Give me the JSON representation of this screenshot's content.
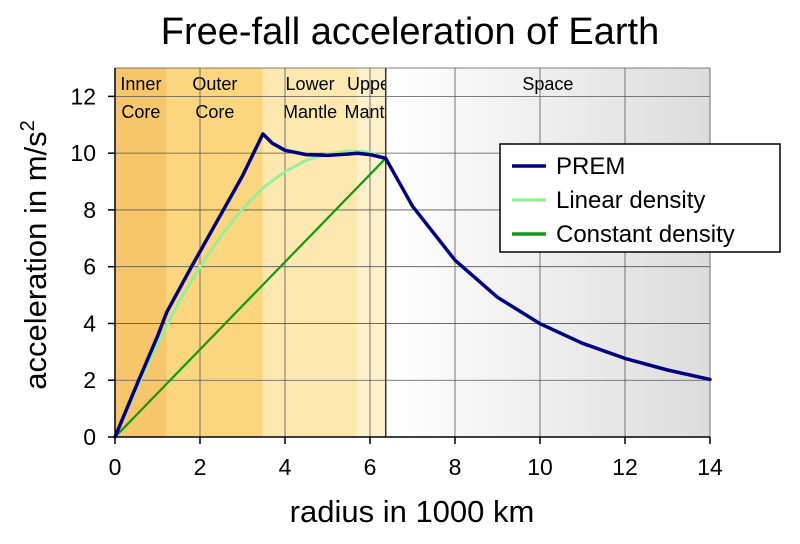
{
  "chart_data": {
    "type": "line",
    "title": "Free-fall acceleration of Earth",
    "xlabel": "radius in 1000 km",
    "ylabel": "acceleration in m/s",
    "ylabel_superscript": "2",
    "xlim": [
      0,
      14
    ],
    "ylim": [
      0,
      13
    ],
    "x_ticks": [
      "0",
      "2",
      "4",
      "6",
      "8",
      "10",
      "12",
      "14"
    ],
    "y_ticks": [
      "0",
      "2",
      "4",
      "6",
      "8",
      "10",
      "12"
    ],
    "grid": true,
    "legend_position": "top-right",
    "regions": [
      {
        "line1": "Inner",
        "line2": "Core",
        "x_start": 0,
        "x_end": 1.22,
        "color": "#f8c66a"
      },
      {
        "line1": "Outer",
        "line2": "Core",
        "x_start": 1.22,
        "x_end": 3.48,
        "color": "#fbd67e"
      },
      {
        "line1": "Lower",
        "line2": "Mantle",
        "x_start": 3.48,
        "x_end": 5.7,
        "color": "#fde8b0"
      },
      {
        "line1": "Upper",
        "line2": "Mantle",
        "x_start": 5.7,
        "x_end": 6.37,
        "color": "#fdf1cc"
      },
      {
        "line1": "",
        "line2": "Space",
        "x_start": 6.37,
        "x_end": 14,
        "color": "space-gradient"
      }
    ],
    "series": [
      {
        "name": "PREM",
        "color": "#000080",
        "points": [
          [
            0,
            0
          ],
          [
            0.5,
            1.8
          ],
          [
            1.0,
            3.55
          ],
          [
            1.22,
            4.4
          ],
          [
            1.8,
            6.0
          ],
          [
            2.4,
            7.6
          ],
          [
            3.0,
            9.2
          ],
          [
            3.48,
            10.68
          ],
          [
            3.7,
            10.35
          ],
          [
            4.0,
            10.1
          ],
          [
            4.5,
            9.95
          ],
          [
            5.0,
            9.92
          ],
          [
            5.5,
            9.97
          ],
          [
            5.7,
            10.0
          ],
          [
            6.0,
            9.95
          ],
          [
            6.37,
            9.82
          ],
          [
            7.0,
            8.13
          ],
          [
            8.0,
            6.23
          ],
          [
            9.0,
            4.92
          ],
          [
            10.0,
            3.99
          ],
          [
            11.0,
            3.3
          ],
          [
            12.0,
            2.77
          ],
          [
            13.0,
            2.36
          ],
          [
            14.0,
            2.03
          ]
        ]
      },
      {
        "name": "Linear density",
        "color": "#99ee99",
        "points": [
          [
            0,
            0
          ],
          [
            0.5,
            1.7
          ],
          [
            1.0,
            3.3
          ],
          [
            1.5,
            4.75
          ],
          [
            2.0,
            6.0
          ],
          [
            2.5,
            7.1
          ],
          [
            3.0,
            8.05
          ],
          [
            3.5,
            8.8
          ],
          [
            4.0,
            9.35
          ],
          [
            4.5,
            9.75
          ],
          [
            5.0,
            9.98
          ],
          [
            5.5,
            10.08
          ],
          [
            5.8,
            10.07
          ],
          [
            6.0,
            10.02
          ],
          [
            6.37,
            9.82
          ]
        ]
      },
      {
        "name": "Constant density",
        "color": "#119911",
        "points": [
          [
            0,
            0
          ],
          [
            6.37,
            9.82
          ]
        ]
      }
    ]
  }
}
